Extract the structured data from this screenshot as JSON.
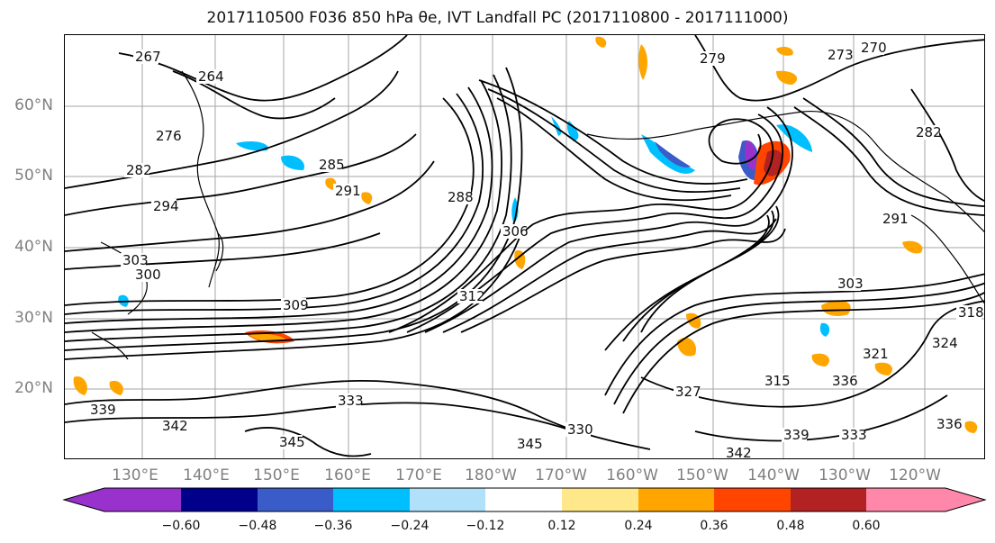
{
  "title": "2017110500 F036 850 hPa θe, IVT Landfall PC (2017110800 - 2017111000)",
  "map": {
    "lat_labels": [
      "60°N",
      "50°N",
      "40°N",
      "30°N",
      "20°N"
    ],
    "lon_labels": [
      "130°E",
      "140°E",
      "150°E",
      "160°E",
      "170°E",
      "180°W",
      "170°W",
      "160°W",
      "150°W",
      "140°W",
      "130°W",
      "120°W"
    ],
    "contour_labels": [
      "267",
      "264",
      "279",
      "270",
      "273",
      "276",
      "282",
      "285",
      "291",
      "294",
      "288",
      "306",
      "303",
      "300",
      "309",
      "312",
      "303",
      "291",
      "282",
      "318",
      "324",
      "327",
      "321",
      "315",
      "333",
      "336",
      "339",
      "342",
      "345",
      "330",
      "339",
      "342",
      "345",
      "336",
      "333"
    ],
    "line_color": "#000000",
    "coastline_color": "#000000",
    "grid_color": "#808080"
  },
  "colorbar": {
    "tick_labels": [
      "−0.60",
      "−0.48",
      "−0.36",
      "−0.24",
      "−0.12",
      "0.12",
      "0.24",
      "0.36",
      "0.48",
      "0.60"
    ],
    "colors": [
      "#9932cc",
      "#00008b",
      "#3a5cc9",
      "#00bfff",
      "#b0e0fa",
      "#ffffff",
      "#ffe88a",
      "#ffa500",
      "#ff4500",
      "#b22222",
      "#ff88aa"
    ]
  }
}
